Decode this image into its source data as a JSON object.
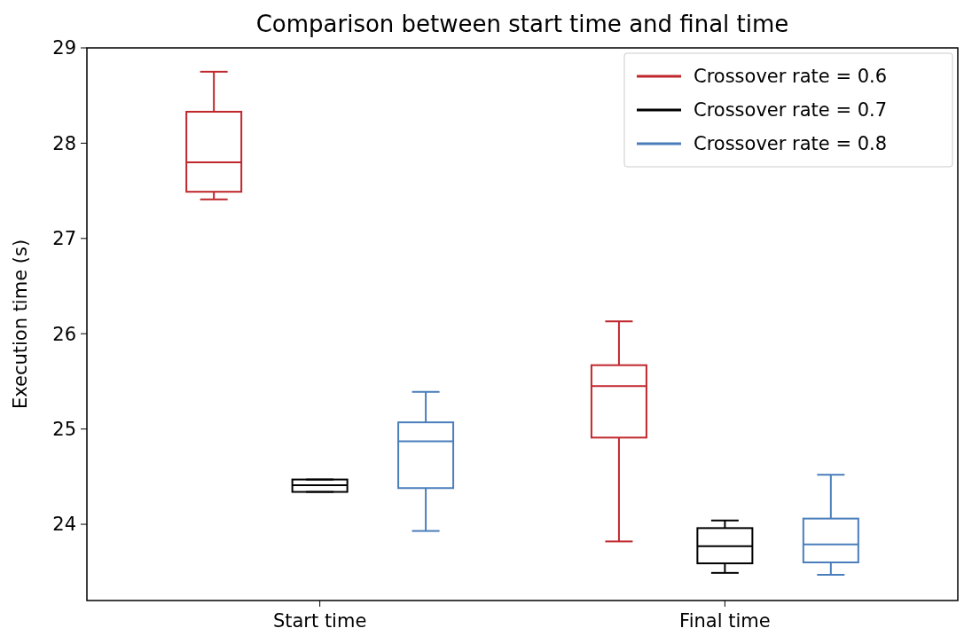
{
  "chart_data": {
    "type": "box",
    "title": "Comparison between start time and final time",
    "ylabel": "Execution time (s)",
    "categories": [
      "Start time",
      "Final time"
    ],
    "ylim": [
      23.2,
      29
    ],
    "yticks": [
      24,
      25,
      26,
      27,
      28,
      29
    ],
    "legend": "top right",
    "grid": false,
    "series": [
      {
        "name": "Crossover rate = 0.6",
        "color": "#c0272d",
        "boxes": [
          {
            "low": 27.41,
            "q1": 27.49,
            "median": 27.8,
            "q3": 28.33,
            "high": 28.75
          },
          {
            "low": 23.82,
            "q1": 24.91,
            "median": 25.45,
            "q3": 25.67,
            "high": 26.13
          }
        ]
      },
      {
        "name": "Crossover rate = 0.7",
        "color": "#000000",
        "boxes": [
          {
            "low": 24.34,
            "q1": 24.34,
            "median": 24.41,
            "q3": 24.47,
            "high": 24.47
          },
          {
            "low": 23.49,
            "q1": 23.59,
            "median": 23.77,
            "q3": 23.96,
            "high": 24.04
          }
        ]
      },
      {
        "name": "Crossover rate = 0.8",
        "color": "#4a7ebb",
        "boxes": [
          {
            "low": 23.93,
            "q1": 24.38,
            "median": 24.87,
            "q3": 25.07,
            "high": 25.39
          },
          {
            "low": 23.47,
            "q1": 23.6,
            "median": 23.79,
            "q3": 24.06,
            "high": 24.52
          }
        ]
      }
    ]
  }
}
